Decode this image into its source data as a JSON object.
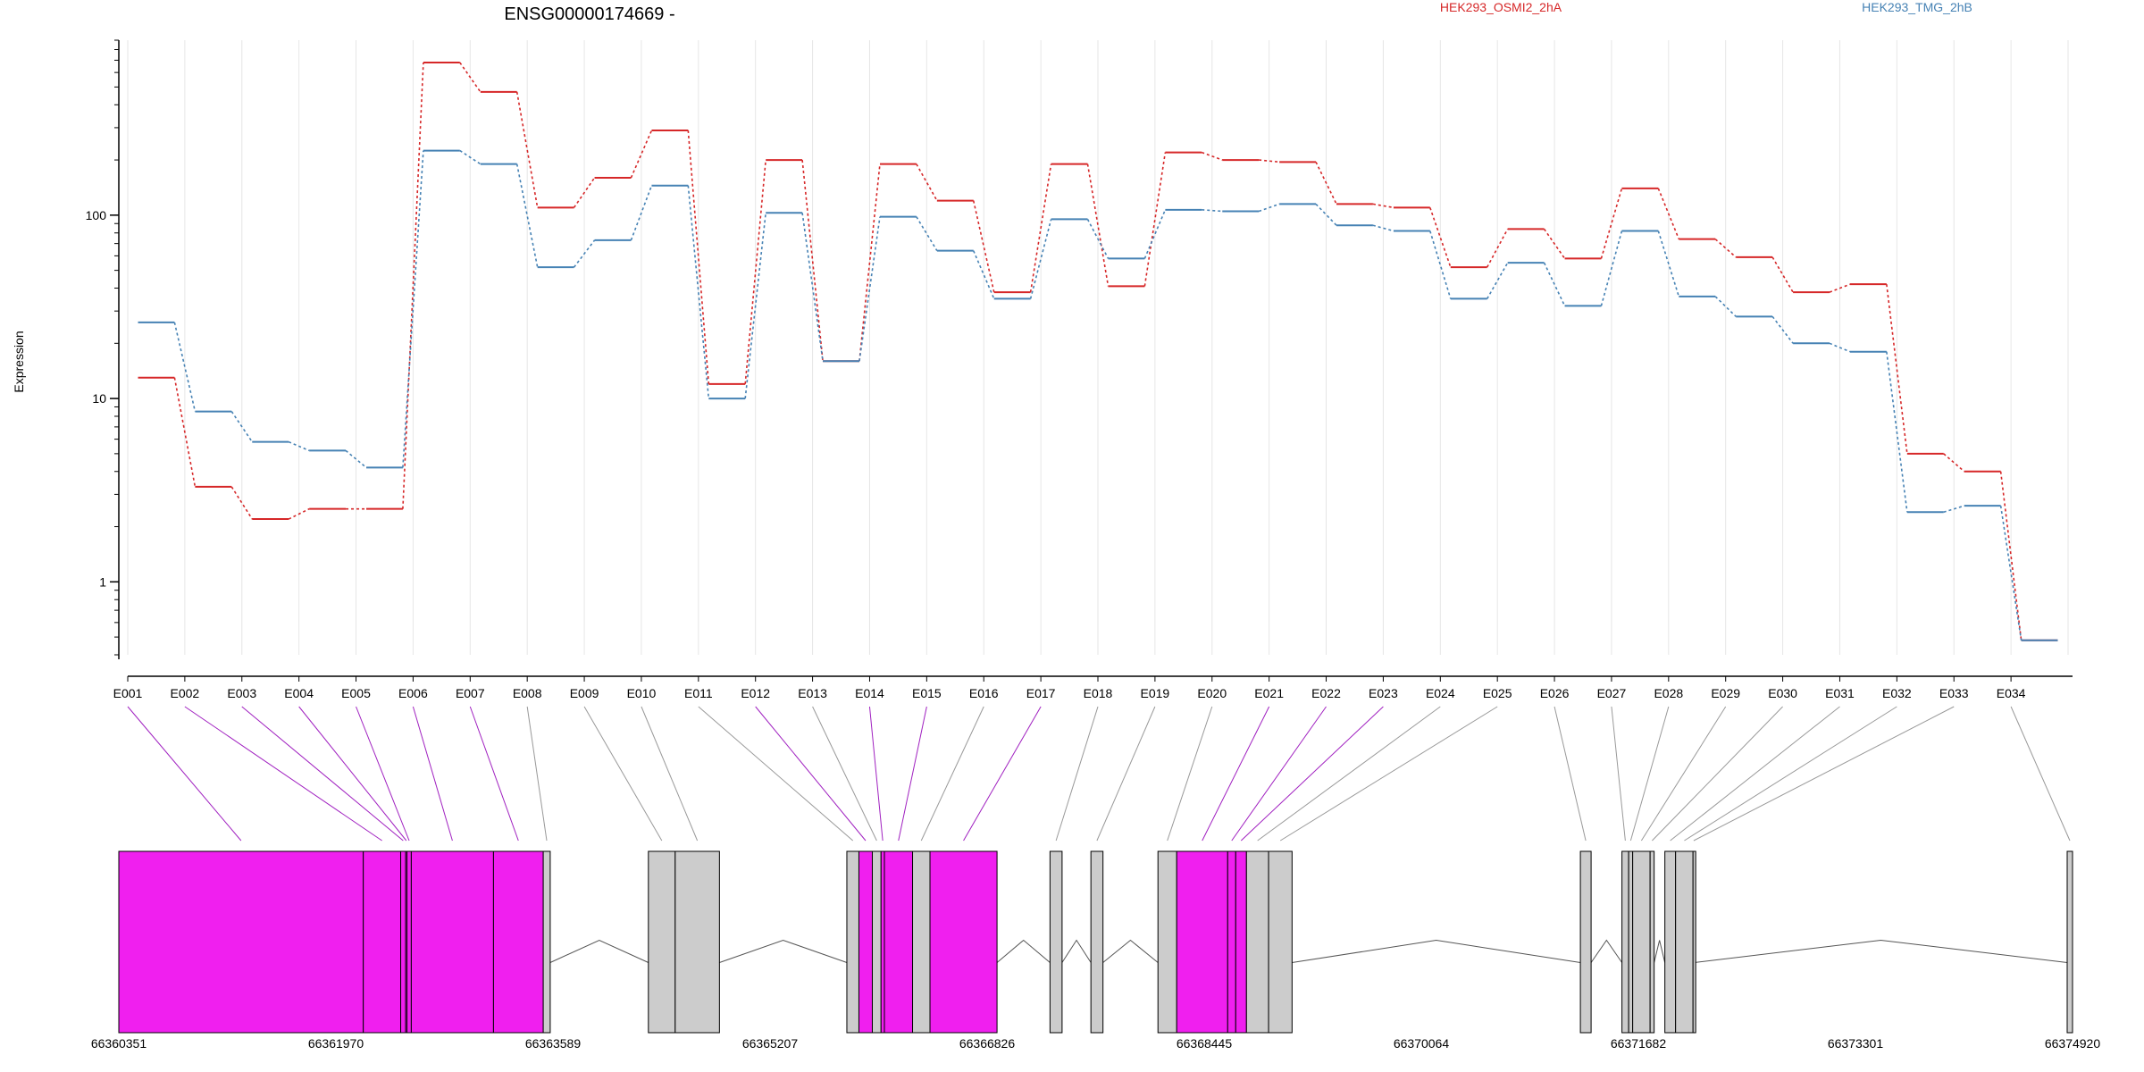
{
  "chart_data": {
    "type": "line",
    "title": "ENSG00000174669 -",
    "ylabel": "Expression",
    "yscale": "log",
    "ylim": [
      0.4,
      900
    ],
    "yticks": [
      1,
      10,
      100
    ],
    "ytick_labels": [
      "1",
      "10",
      "100"
    ],
    "categories": [
      "E001",
      "E002",
      "E003",
      "E004",
      "E005",
      "E006",
      "E007",
      "E008",
      "E009",
      "E010",
      "E011",
      "E012",
      "E013",
      "E014",
      "E015",
      "E016",
      "E017",
      "E018",
      "E019",
      "E020",
      "E021",
      "E022",
      "E023",
      "E024",
      "E025",
      "E026",
      "E027",
      "E028",
      "E029",
      "E030",
      "E031",
      "E032",
      "E033",
      "E034"
    ],
    "series": [
      {
        "name": "HEK293_OSMI2_2hA",
        "color": "#d62728",
        "values": [
          13,
          3.3,
          2.2,
          2.5,
          2.5,
          680,
          470,
          110,
          160,
          290,
          12,
          200,
          16,
          190,
          120,
          38,
          190,
          41,
          220,
          200,
          195,
          115,
          110,
          52,
          84,
          58,
          140,
          74,
          59,
          38,
          42,
          5,
          4,
          0.48
        ]
      },
      {
        "name": "HEK293_TMG_2hB",
        "color": "#4682b4",
        "values": [
          26,
          8.5,
          5.8,
          5.2,
          4.2,
          225,
          190,
          52,
          73,
          145,
          10,
          103,
          16,
          98,
          64,
          35,
          95,
          58,
          107,
          105,
          115,
          88,
          82,
          35,
          55,
          32,
          82,
          36,
          28,
          20,
          18,
          2.4,
          2.6,
          0.48
        ]
      }
    ],
    "grid": true,
    "legend_position": "top",
    "genome_track": {
      "start": 66360351,
      "end": 66374920,
      "coord_labels": [
        "66360351",
        "66361970",
        "66363589",
        "66365207",
        "66366826",
        "66368445",
        "66370064",
        "66371682",
        "66373301",
        "66374920"
      ],
      "exons": [
        {
          "id": "E001",
          "start": 66360351,
          "end": 66362174,
          "hit": true
        },
        {
          "id": "E002",
          "start": 66362174,
          "end": 66362453,
          "hit": true
        },
        {
          "id": "E003",
          "start": 66362453,
          "end": 66362490,
          "hit": true
        },
        {
          "id": "E004",
          "start": 66362490,
          "end": 66362500,
          "hit": true
        },
        {
          "id": "E005",
          "start": 66362500,
          "end": 66362532,
          "hit": true
        },
        {
          "id": "E006",
          "start": 66362532,
          "end": 66363145,
          "hit": true
        },
        {
          "id": "E007",
          "start": 66363145,
          "end": 66363516,
          "hit": true
        },
        {
          "id": "E008",
          "start": 66363516,
          "end": 66363568,
          "hit": false
        },
        {
          "id": "E009",
          "start": 66364300,
          "end": 66364500,
          "hit": false
        },
        {
          "id": "E010",
          "start": 66364500,
          "end": 66364830,
          "hit": false
        },
        {
          "id": "E011",
          "start": 66365780,
          "end": 66365870,
          "hit": false
        },
        {
          "id": "E012",
          "start": 66365870,
          "end": 66365970,
          "hit": true
        },
        {
          "id": "E013",
          "start": 66365970,
          "end": 66366035,
          "hit": false
        },
        {
          "id": "E014",
          "start": 66366035,
          "end": 66366060,
          "hit": true
        },
        {
          "id": "E015",
          "start": 66366060,
          "end": 66366270,
          "hit": true
        },
        {
          "id": "E016",
          "start": 66366270,
          "end": 66366400,
          "hit": false
        },
        {
          "id": "E017",
          "start": 66366400,
          "end": 66366900,
          "hit": true
        },
        {
          "id": "E018",
          "start": 66367295,
          "end": 66367385,
          "hit": false
        },
        {
          "id": "E019",
          "start": 66367600,
          "end": 66367690,
          "hit": false
        },
        {
          "id": "E020",
          "start": 66368100,
          "end": 66368240,
          "hit": false
        },
        {
          "id": "E021",
          "start": 66368240,
          "end": 66368620,
          "hit": true
        },
        {
          "id": "E022",
          "start": 66368620,
          "end": 66368680,
          "hit": true
        },
        {
          "id": "E023",
          "start": 66368680,
          "end": 66368760,
          "hit": true
        },
        {
          "id": "E024",
          "start": 66368760,
          "end": 66368925,
          "hit": false
        },
        {
          "id": "E025",
          "start": 66368925,
          "end": 66369100,
          "hit": false
        },
        {
          "id": "E026",
          "start": 66371250,
          "end": 66371330,
          "hit": false
        },
        {
          "id": "E027",
          "start": 66371560,
          "end": 66371610,
          "hit": false
        },
        {
          "id": "E028",
          "start": 66371610,
          "end": 66371640,
          "hit": false
        },
        {
          "id": "E029",
          "start": 66371640,
          "end": 66371770,
          "hit": false
        },
        {
          "id": "E030",
          "start": 66371770,
          "end": 66371800,
          "hit": false
        },
        {
          "id": "E031",
          "start": 66371880,
          "end": 66371960,
          "hit": false
        },
        {
          "id": "E032",
          "start": 66371960,
          "end": 66372090,
          "hit": false
        },
        {
          "id": "E033",
          "start": 66372090,
          "end": 66372100,
          "hit": false
        },
        {
          "id": "E034",
          "start": 66374880,
          "end": 66374920,
          "hit": false
        }
      ],
      "exon_color": "#cccccc",
      "highlight_color": "#f01fef"
    }
  }
}
